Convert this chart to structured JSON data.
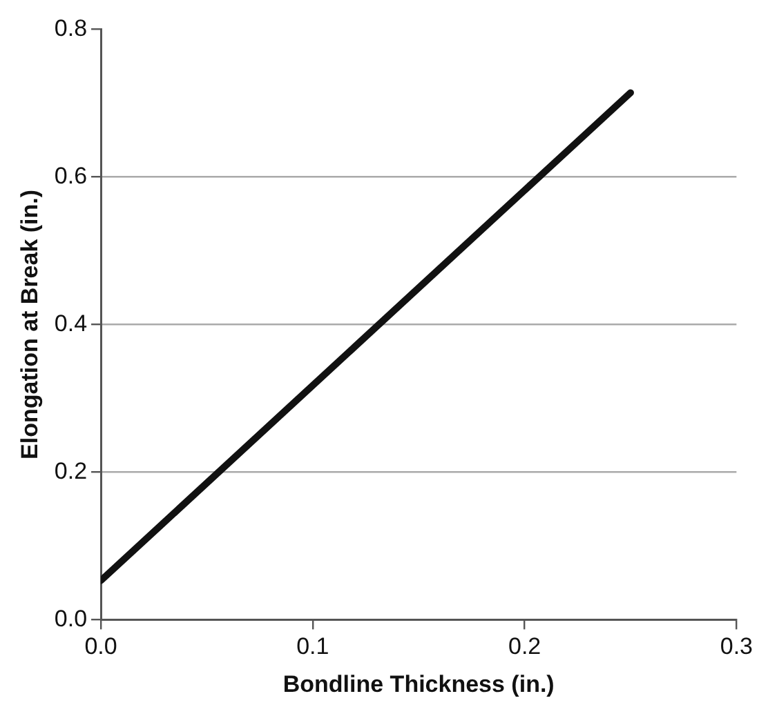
{
  "chart_data": {
    "type": "line",
    "xlabel": "Bondline Thickness (in.)",
    "ylabel": "Elongation at Break (in.)",
    "x": [
      0,
      0.25
    ],
    "series": [
      {
        "color": "#111111",
        "values": [
          0.053,
          0.714
        ]
      }
    ],
    "xlim": [
      0,
      0.3
    ],
    "xticks": [
      {
        "value": 0,
        "label": "0.0"
      },
      0.1,
      0.2,
      0.3
    ],
    "ylim": [
      0,
      0.8
    ],
    "yticks": [
      {
        "value": 0,
        "label": "0.0"
      },
      0.2,
      0.4,
      0.6,
      0.8
    ],
    "grid": "y",
    "legend": false,
    "marker": "none",
    "line_style": "solid"
  }
}
